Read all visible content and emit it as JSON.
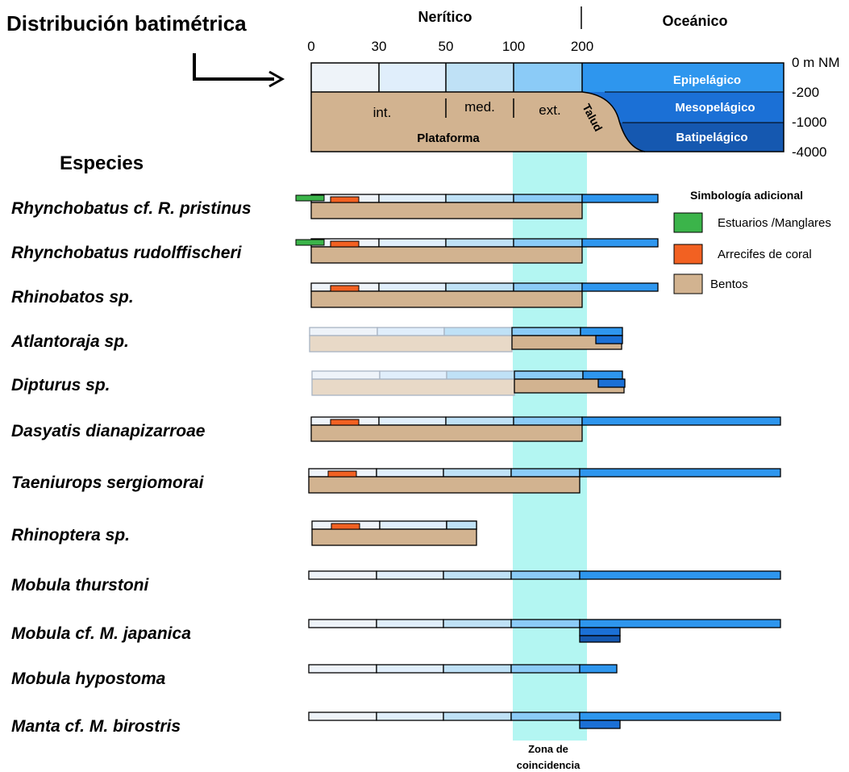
{
  "title": "Distribución batimétrica",
  "zone_header": {
    "neritic": "Nerítico",
    "oceanic": "Oceánico"
  },
  "depth_ticks": [
    "0",
    "30",
    "50",
    "100",
    "200"
  ],
  "depth_scale": [
    "0 m NM",
    "-200",
    "-1000",
    "-4000"
  ],
  "shelf": {
    "inner": "int.",
    "middle": "med.",
    "outer": "ext.",
    "label": "Plataforma",
    "slope": "Talud"
  },
  "pelagic": {
    "epi": "Epipelágico",
    "meso": "Mesopelágico",
    "bati": "Batipelágico"
  },
  "species_header": "Especies",
  "species": [
    {
      "name": "Rhynchobatus cf. R. pristinus",
      "estuary": true,
      "coral": true,
      "benthos": "full",
      "epi_to": "mid",
      "meso": false,
      "bati": false
    },
    {
      "name": "Rhynchobatus rudolffischeri",
      "estuary": true,
      "coral": true,
      "benthos": "full",
      "epi_to": "mid",
      "meso": false,
      "bati": false
    },
    {
      "name": "Rhinobatos sp.",
      "estuary": false,
      "coral": true,
      "benthos": "full",
      "epi_to": "mid",
      "meso": false,
      "bati": false
    },
    {
      "name": "Atlantoraja sp.",
      "estuary": false,
      "coral": false,
      "benthos": "outer",
      "epi_to": "short",
      "meso": true,
      "bati": true,
      "faded_inner": true
    },
    {
      "name": "Dipturus sp.",
      "estuary": false,
      "coral": false,
      "benthos": "outer",
      "epi_to": "short",
      "meso": true,
      "bati": true,
      "faded_inner": true
    },
    {
      "name": "Dasyatis dianapizarroae",
      "estuary": false,
      "coral": true,
      "benthos": "full",
      "epi_to": "long",
      "meso": false,
      "bati": false
    },
    {
      "name": "Taeniurops sergiomorai",
      "estuary": false,
      "coral": true,
      "benthos": "full",
      "epi_to": "long",
      "meso": false,
      "bati": false
    },
    {
      "name": "Rhinoptera sp.",
      "estuary": false,
      "coral": true,
      "benthos": "partial",
      "epi_to": "none",
      "meso": false,
      "bati": false
    },
    {
      "name": "Mobula thurstoni",
      "estuary": false,
      "coral": false,
      "benthos": "none",
      "epi_to": "long",
      "meso": false,
      "bati": false
    },
    {
      "name": "Mobula cf. M. japanica",
      "estuary": false,
      "coral": false,
      "benthos": "none",
      "epi_to": "long",
      "meso": true,
      "bati": true
    },
    {
      "name": "Mobula hypostoma",
      "estuary": false,
      "coral": false,
      "benthos": "none",
      "epi_to": "tiny",
      "meso": false,
      "bati": false
    },
    {
      "name": "Manta cf. M. birostris",
      "estuary": false,
      "coral": false,
      "benthos": "none",
      "epi_to": "long",
      "meso": true,
      "bati": false
    }
  ],
  "legend": {
    "title": "Simbología adicional",
    "items": [
      {
        "label": "Estuarios /Manglares",
        "color": "#3bb44a"
      },
      {
        "label": "Arrecifes de coral",
        "color": "#f26122"
      },
      {
        "label": "Bentos",
        "color": "#d2b390"
      }
    ]
  },
  "overlap_zone": "Zona de coincidencia",
  "colors": {
    "z0": "#eef3f9",
    "z1": "#e0eefb",
    "z2": "#bfe1f6",
    "z3": "#8bcbf7",
    "epi": "#2e96ee",
    "meso": "#1b70d6",
    "bati": "#1558b0",
    "benthos": "#d2b390",
    "highlight": "#b3f6f2"
  }
}
